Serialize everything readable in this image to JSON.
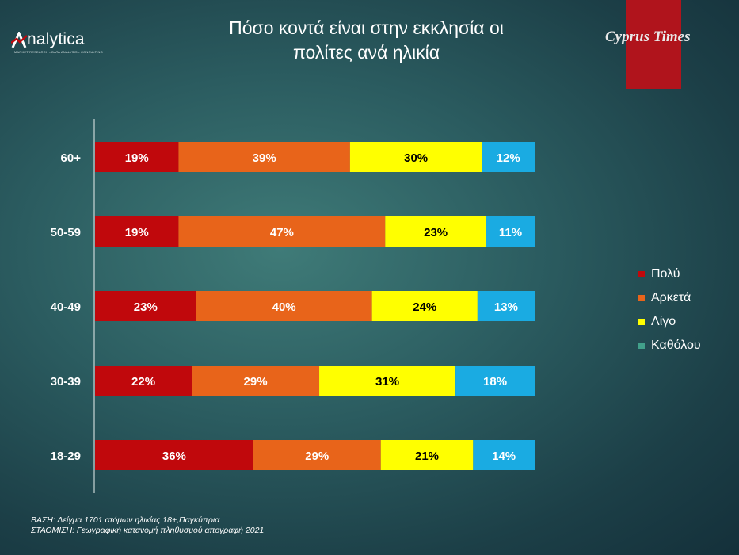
{
  "header": {
    "brand_name": "nalytica",
    "brand_tagline": "MARKET RESEARCH • DATA ANALYSIS • CONSULTING",
    "title_line1": "Πόσο κοντά είναι στην εκκλησία οι",
    "title_line2": "πολίτες ανά ηλικία",
    "newspaper": "Cyprus Times"
  },
  "colors": {
    "polu": "#c0080c",
    "arketa": "#e8641a",
    "ligo": "#ffff00",
    "katholou": "#1aabe2",
    "legend_katholou": "#41a08a",
    "brand_red": "#b0141c"
  },
  "chart_data": {
    "type": "bar",
    "orientation": "horizontal",
    "stacked": true,
    "categories": [
      "60+",
      "50-59",
      "40-49",
      "30-39",
      "18-29"
    ],
    "series": [
      {
        "name": "Πολύ",
        "values": [
          19,
          19,
          23,
          22,
          36
        ],
        "labels": [
          "19%",
          "19%",
          "23%",
          "22%",
          "36%"
        ]
      },
      {
        "name": "Αρκετά",
        "values": [
          39,
          47,
          40,
          29,
          29
        ],
        "labels": [
          "39%",
          "47%",
          "40%",
          "29%",
          "29%"
        ]
      },
      {
        "name": "Λίγο",
        "values": [
          30,
          23,
          24,
          31,
          21
        ],
        "labels": [
          "30%",
          "23%",
          "24%",
          "31%",
          "21%"
        ]
      },
      {
        "name": "Καθόλου",
        "values": [
          12,
          11,
          13,
          18,
          14
        ],
        "labels": [
          "12%",
          "11%",
          "13%",
          "18%",
          "14%"
        ]
      }
    ],
    "xlim": [
      0,
      100
    ],
    "grid": false,
    "legend_position": "right"
  },
  "notes": {
    "base": "ΒΑΣΗ: Δείγμα 1701 ατόμων ηλικίας 18+,Παγκύπρια",
    "weighting": "ΣΤΑΘΜΙΣΗ: Γεωγραφική κατανομή πληθυσμού απογραφή 2021"
  }
}
